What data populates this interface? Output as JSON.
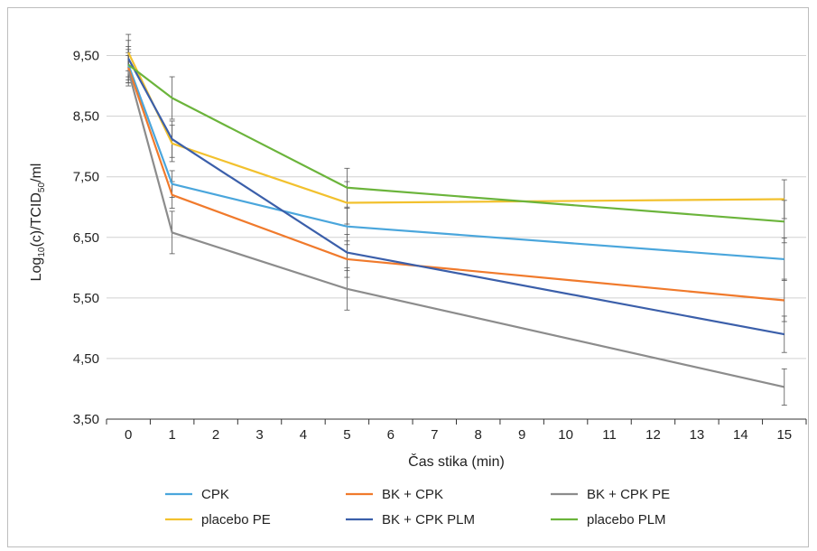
{
  "chart_data": {
    "type": "line",
    "title": "",
    "xlabel": "Čas stika (min)",
    "ylabel": "Log10(c)/TCID50/ml",
    "ylabel_parts": {
      "a": "Log",
      "a_sub": "10",
      "b": "(c)/TCID",
      "b_sub": "50",
      "c": "/ml"
    },
    "xlim": [
      0,
      15
    ],
    "ylim": [
      3.5,
      10.0
    ],
    "x_ticks": [
      "0",
      "1",
      "2",
      "3",
      "4",
      "5",
      "6",
      "7",
      "8",
      "9",
      "10",
      "11",
      "12",
      "13",
      "14",
      "15"
    ],
    "y_ticks": [
      "3,50",
      "4,50",
      "5,50",
      "6,50",
      "7,50",
      "8,50",
      "9,50"
    ],
    "y_tick_values": [
      3.5,
      4.5,
      5.5,
      6.5,
      7.5,
      8.5,
      9.5
    ],
    "grid": true,
    "legend_position": "bottom",
    "x": [
      0,
      1,
      5,
      15
    ],
    "series": [
      {
        "name": "CPK",
        "color": "#4aa6dc",
        "values": [
          9.35,
          7.38,
          6.68,
          6.14
        ],
        "err": [
          0.25,
          0.22,
          0.3,
          0.35
        ]
      },
      {
        "name": "BK + CPK",
        "color": "#f07a2c",
        "values": [
          9.3,
          7.2,
          6.14,
          5.46
        ],
        "err": [
          0.25,
          0.22,
          0.3,
          0.35
        ]
      },
      {
        "name": "BK + CPK PE",
        "color": "#8c8c8c",
        "values": [
          9.25,
          6.58,
          5.65,
          4.03
        ],
        "err": [
          0.25,
          0.35,
          0.35,
          0.3
        ]
      },
      {
        "name": "placebo PE",
        "color": "#f2c12e",
        "values": [
          9.55,
          8.05,
          7.07,
          7.13
        ],
        "err": [
          0.3,
          0.3,
          0.35,
          0.32
        ]
      },
      {
        "name": "BK + CPK PLM",
        "color": "#3b5faa",
        "values": [
          9.45,
          8.12,
          6.25,
          4.9
        ],
        "err": [
          0.3,
          0.3,
          0.3,
          0.3
        ]
      },
      {
        "name": "placebo PLM",
        "color": "#6bb43b",
        "values": [
          9.35,
          8.8,
          7.32,
          6.76
        ],
        "err": [
          0.3,
          0.35,
          0.32,
          0.35
        ]
      }
    ]
  }
}
